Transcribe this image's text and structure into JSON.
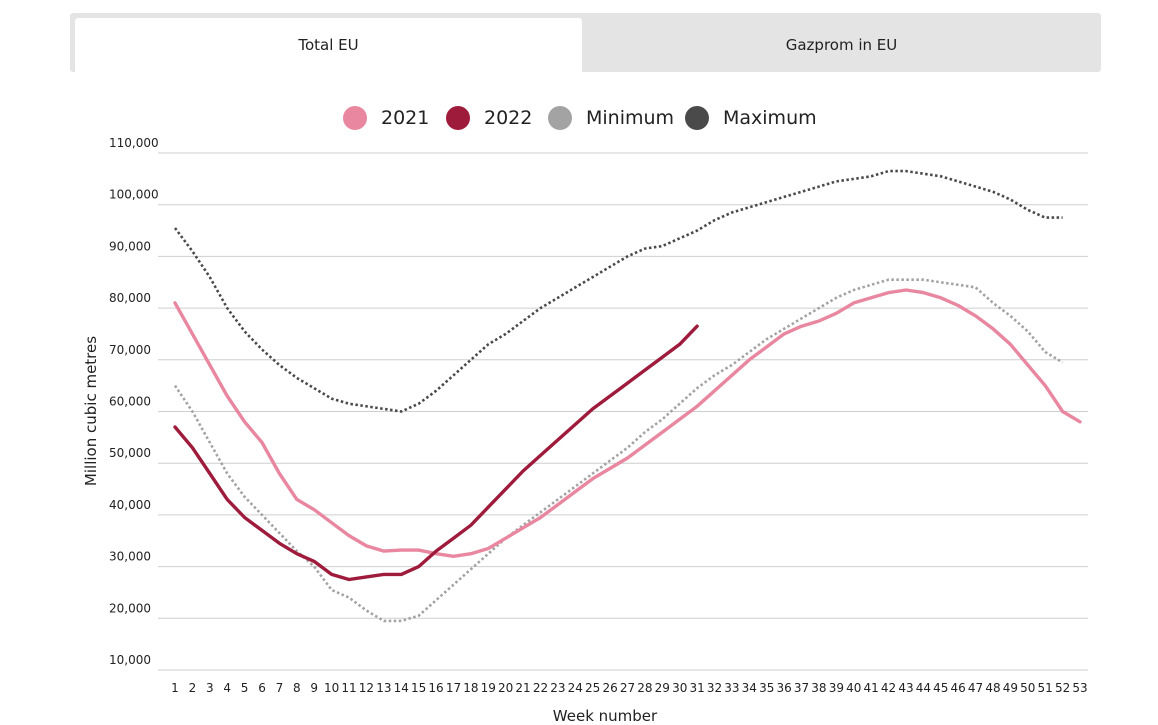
{
  "tabs": [
    {
      "label": "Total EU",
      "active": true
    },
    {
      "label": "Gazprom in EU",
      "active": false
    }
  ],
  "chart_data": {
    "type": "line",
    "ylabel": "Million cubic metres",
    "xlabel": "Week number",
    "ylim": [
      10000,
      110000
    ],
    "yticks": [
      10000,
      20000,
      30000,
      40000,
      50000,
      60000,
      70000,
      80000,
      90000,
      100000,
      110000
    ],
    "ytick_labels": [
      "10,000",
      "20,000",
      "30,000",
      "40,000",
      "50,000",
      "60,000",
      "70,000",
      "80,000",
      "90,000",
      "100,000",
      "110,000"
    ],
    "xticks": [
      1,
      2,
      3,
      4,
      5,
      6,
      7,
      8,
      9,
      10,
      11,
      12,
      13,
      14,
      15,
      16,
      17,
      18,
      19,
      20,
      21,
      22,
      23,
      24,
      25,
      26,
      27,
      28,
      29,
      30,
      31,
      32,
      33,
      34,
      35,
      36,
      37,
      38,
      39,
      40,
      41,
      42,
      43,
      44,
      45,
      46,
      47,
      48,
      49,
      50,
      51,
      52,
      53
    ],
    "grid": "horizontal",
    "legend_position": "top-center",
    "series": [
      {
        "name": "2021",
        "color": "#e8879f",
        "style": "solid",
        "x": [
          1,
          2,
          3,
          4,
          5,
          6,
          7,
          8,
          9,
          10,
          11,
          12,
          13,
          14,
          15,
          16,
          17,
          18,
          19,
          20,
          21,
          22,
          23,
          24,
          25,
          26,
          27,
          28,
          29,
          30,
          31,
          32,
          33,
          34,
          35,
          36,
          37,
          38,
          39,
          40,
          41,
          42,
          43,
          44,
          45,
          46,
          47,
          48,
          49,
          50,
          51,
          52,
          53
        ],
        "values": [
          81000,
          75000,
          69000,
          63000,
          58000,
          54000,
          48000,
          43000,
          41000,
          38500,
          36000,
          34000,
          33000,
          33200,
          33200,
          32500,
          32000,
          32500,
          33500,
          35500,
          37500,
          39500,
          42000,
          44500,
          47000,
          49000,
          51000,
          53500,
          56000,
          58500,
          61000,
          64000,
          67000,
          70000,
          72500,
          75000,
          76500,
          77500,
          79000,
          81000,
          82000,
          83000,
          83500,
          83000,
          82000,
          80500,
          78500,
          76000,
          73000,
          69000,
          65000,
          60000,
          58000
        ]
      },
      {
        "name": "2022",
        "color": "#9e1b3b",
        "style": "solid",
        "x": [
          1,
          2,
          3,
          4,
          5,
          6,
          7,
          8,
          9,
          10,
          11,
          12,
          13,
          14,
          15,
          16,
          17,
          18,
          19,
          20,
          21,
          22,
          23,
          24,
          25,
          26,
          27,
          28,
          29,
          30,
          31
        ],
        "values": [
          57000,
          53000,
          48000,
          43000,
          39500,
          37000,
          34500,
          32500,
          31000,
          28500,
          27500,
          28000,
          28500,
          28500,
          30000,
          33000,
          35500,
          38000,
          41500,
          45000,
          48500,
          51500,
          54500,
          57500,
          60500,
          63000,
          65500,
          68000,
          70500,
          73000,
          76500
        ]
      },
      {
        "name": "Minimum",
        "color": "#a3a3a3",
        "style": "dotted",
        "x": [
          1,
          2,
          3,
          4,
          5,
          6,
          7,
          8,
          9,
          10,
          11,
          12,
          13,
          14,
          15,
          16,
          17,
          18,
          19,
          20,
          21,
          22,
          23,
          24,
          25,
          26,
          27,
          28,
          29,
          30,
          31,
          32,
          33,
          34,
          35,
          36,
          37,
          38,
          39,
          40,
          41,
          42,
          43,
          44,
          45,
          46,
          47,
          48,
          49,
          50,
          51,
          52
        ],
        "values": [
          65000,
          60000,
          54000,
          48000,
          43500,
          40000,
          36500,
          33000,
          30000,
          25500,
          24000,
          21500,
          19500,
          19500,
          20500,
          23500,
          26500,
          29500,
          32500,
          35500,
          38000,
          40500,
          43000,
          45500,
          48000,
          50500,
          53000,
          56000,
          58500,
          61500,
          64500,
          67000,
          69000,
          71500,
          74000,
          76000,
          78000,
          80000,
          82000,
          83500,
          84500,
          85500,
          85500,
          85500,
          85000,
          84500,
          84000,
          81000,
          78500,
          75500,
          71500,
          69500
        ]
      },
      {
        "name": "Maximum",
        "color": "#4a4a4a",
        "style": "dotted",
        "x": [
          1,
          2,
          3,
          4,
          5,
          6,
          7,
          8,
          9,
          10,
          11,
          12,
          13,
          14,
          15,
          16,
          17,
          18,
          19,
          20,
          21,
          22,
          23,
          24,
          25,
          26,
          27,
          28,
          29,
          30,
          31,
          32,
          33,
          34,
          35,
          36,
          37,
          38,
          39,
          40,
          41,
          42,
          43,
          44,
          45,
          46,
          47,
          48,
          49,
          50,
          51,
          52
        ],
        "values": [
          95500,
          91000,
          86000,
          80000,
          75500,
          72000,
          69000,
          66500,
          64500,
          62500,
          61500,
          61000,
          60500,
          60000,
          61500,
          64000,
          67000,
          70000,
          73000,
          75000,
          77500,
          80000,
          82000,
          84000,
          86000,
          88000,
          90000,
          91500,
          92000,
          93500,
          95000,
          97000,
          98500,
          99500,
          100500,
          101500,
          102500,
          103500,
          104500,
          105000,
          105500,
          106500,
          106500,
          106000,
          105500,
          104500,
          103500,
          102500,
          101000,
          99000,
          97500,
          97500
        ]
      }
    ]
  }
}
